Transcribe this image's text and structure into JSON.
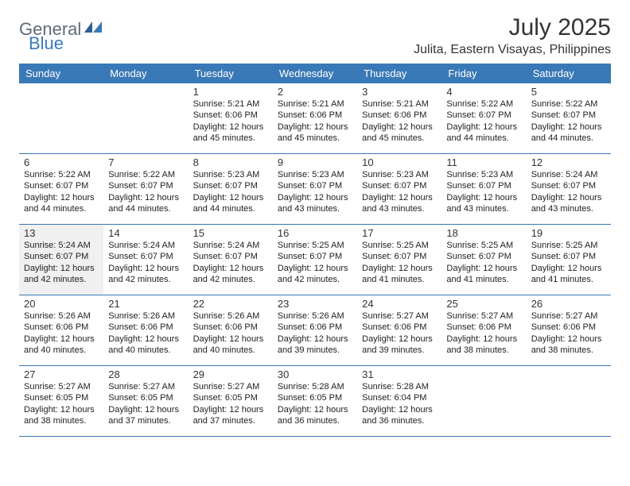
{
  "logo": {
    "text1": "General",
    "text2": "Blue"
  },
  "title": "July 2025",
  "subtitle": "Julita, Eastern Visayas, Philippines",
  "colors": {
    "header_bg": "#3a79b7",
    "header_text": "#ffffff",
    "page_bg": "#ffffff",
    "shaded_bg": "#f0f0f0",
    "rule": "#3a79b7",
    "text": "#333333",
    "logo_gray": "#5f6b76",
    "logo_blue": "#3a79b7"
  },
  "day_names": [
    "Sunday",
    "Monday",
    "Tuesday",
    "Wednesday",
    "Thursday",
    "Friday",
    "Saturday"
  ],
  "weeks": [
    [
      null,
      null,
      {
        "d": "1",
        "sr": "Sunrise: 5:21 AM",
        "ss": "Sunset: 6:06 PM",
        "dl1": "Daylight: 12 hours",
        "dl2": "and 45 minutes."
      },
      {
        "d": "2",
        "sr": "Sunrise: 5:21 AM",
        "ss": "Sunset: 6:06 PM",
        "dl1": "Daylight: 12 hours",
        "dl2": "and 45 minutes."
      },
      {
        "d": "3",
        "sr": "Sunrise: 5:21 AM",
        "ss": "Sunset: 6:06 PM",
        "dl1": "Daylight: 12 hours",
        "dl2": "and 45 minutes."
      },
      {
        "d": "4",
        "sr": "Sunrise: 5:22 AM",
        "ss": "Sunset: 6:07 PM",
        "dl1": "Daylight: 12 hours",
        "dl2": "and 44 minutes."
      },
      {
        "d": "5",
        "sr": "Sunrise: 5:22 AM",
        "ss": "Sunset: 6:07 PM",
        "dl1": "Daylight: 12 hours",
        "dl2": "and 44 minutes."
      }
    ],
    [
      {
        "d": "6",
        "sr": "Sunrise: 5:22 AM",
        "ss": "Sunset: 6:07 PM",
        "dl1": "Daylight: 12 hours",
        "dl2": "and 44 minutes."
      },
      {
        "d": "7",
        "sr": "Sunrise: 5:22 AM",
        "ss": "Sunset: 6:07 PM",
        "dl1": "Daylight: 12 hours",
        "dl2": "and 44 minutes."
      },
      {
        "d": "8",
        "sr": "Sunrise: 5:23 AM",
        "ss": "Sunset: 6:07 PM",
        "dl1": "Daylight: 12 hours",
        "dl2": "and 44 minutes."
      },
      {
        "d": "9",
        "sr": "Sunrise: 5:23 AM",
        "ss": "Sunset: 6:07 PM",
        "dl1": "Daylight: 12 hours",
        "dl2": "and 43 minutes."
      },
      {
        "d": "10",
        "sr": "Sunrise: 5:23 AM",
        "ss": "Sunset: 6:07 PM",
        "dl1": "Daylight: 12 hours",
        "dl2": "and 43 minutes."
      },
      {
        "d": "11",
        "sr": "Sunrise: 5:23 AM",
        "ss": "Sunset: 6:07 PM",
        "dl1": "Daylight: 12 hours",
        "dl2": "and 43 minutes."
      },
      {
        "d": "12",
        "sr": "Sunrise: 5:24 AM",
        "ss": "Sunset: 6:07 PM",
        "dl1": "Daylight: 12 hours",
        "dl2": "and 43 minutes."
      }
    ],
    [
      {
        "d": "13",
        "sr": "Sunrise: 5:24 AM",
        "ss": "Sunset: 6:07 PM",
        "dl1": "Daylight: 12 hours",
        "dl2": "and 42 minutes.",
        "shaded": true
      },
      {
        "d": "14",
        "sr": "Sunrise: 5:24 AM",
        "ss": "Sunset: 6:07 PM",
        "dl1": "Daylight: 12 hours",
        "dl2": "and 42 minutes."
      },
      {
        "d": "15",
        "sr": "Sunrise: 5:24 AM",
        "ss": "Sunset: 6:07 PM",
        "dl1": "Daylight: 12 hours",
        "dl2": "and 42 minutes."
      },
      {
        "d": "16",
        "sr": "Sunrise: 5:25 AM",
        "ss": "Sunset: 6:07 PM",
        "dl1": "Daylight: 12 hours",
        "dl2": "and 42 minutes."
      },
      {
        "d": "17",
        "sr": "Sunrise: 5:25 AM",
        "ss": "Sunset: 6:07 PM",
        "dl1": "Daylight: 12 hours",
        "dl2": "and 41 minutes."
      },
      {
        "d": "18",
        "sr": "Sunrise: 5:25 AM",
        "ss": "Sunset: 6:07 PM",
        "dl1": "Daylight: 12 hours",
        "dl2": "and 41 minutes."
      },
      {
        "d": "19",
        "sr": "Sunrise: 5:25 AM",
        "ss": "Sunset: 6:07 PM",
        "dl1": "Daylight: 12 hours",
        "dl2": "and 41 minutes."
      }
    ],
    [
      {
        "d": "20",
        "sr": "Sunrise: 5:26 AM",
        "ss": "Sunset: 6:06 PM",
        "dl1": "Daylight: 12 hours",
        "dl2": "and 40 minutes."
      },
      {
        "d": "21",
        "sr": "Sunrise: 5:26 AM",
        "ss": "Sunset: 6:06 PM",
        "dl1": "Daylight: 12 hours",
        "dl2": "and 40 minutes."
      },
      {
        "d": "22",
        "sr": "Sunrise: 5:26 AM",
        "ss": "Sunset: 6:06 PM",
        "dl1": "Daylight: 12 hours",
        "dl2": "and 40 minutes."
      },
      {
        "d": "23",
        "sr": "Sunrise: 5:26 AM",
        "ss": "Sunset: 6:06 PM",
        "dl1": "Daylight: 12 hours",
        "dl2": "and 39 minutes."
      },
      {
        "d": "24",
        "sr": "Sunrise: 5:27 AM",
        "ss": "Sunset: 6:06 PM",
        "dl1": "Daylight: 12 hours",
        "dl2": "and 39 minutes."
      },
      {
        "d": "25",
        "sr": "Sunrise: 5:27 AM",
        "ss": "Sunset: 6:06 PM",
        "dl1": "Daylight: 12 hours",
        "dl2": "and 38 minutes."
      },
      {
        "d": "26",
        "sr": "Sunrise: 5:27 AM",
        "ss": "Sunset: 6:06 PM",
        "dl1": "Daylight: 12 hours",
        "dl2": "and 38 minutes."
      }
    ],
    [
      {
        "d": "27",
        "sr": "Sunrise: 5:27 AM",
        "ss": "Sunset: 6:05 PM",
        "dl1": "Daylight: 12 hours",
        "dl2": "and 38 minutes."
      },
      {
        "d": "28",
        "sr": "Sunrise: 5:27 AM",
        "ss": "Sunset: 6:05 PM",
        "dl1": "Daylight: 12 hours",
        "dl2": "and 37 minutes."
      },
      {
        "d": "29",
        "sr": "Sunrise: 5:27 AM",
        "ss": "Sunset: 6:05 PM",
        "dl1": "Daylight: 12 hours",
        "dl2": "and 37 minutes."
      },
      {
        "d": "30",
        "sr": "Sunrise: 5:28 AM",
        "ss": "Sunset: 6:05 PM",
        "dl1": "Daylight: 12 hours",
        "dl2": "and 36 minutes."
      },
      {
        "d": "31",
        "sr": "Sunrise: 5:28 AM",
        "ss": "Sunset: 6:04 PM",
        "dl1": "Daylight: 12 hours",
        "dl2": "and 36 minutes."
      },
      null,
      null
    ]
  ]
}
